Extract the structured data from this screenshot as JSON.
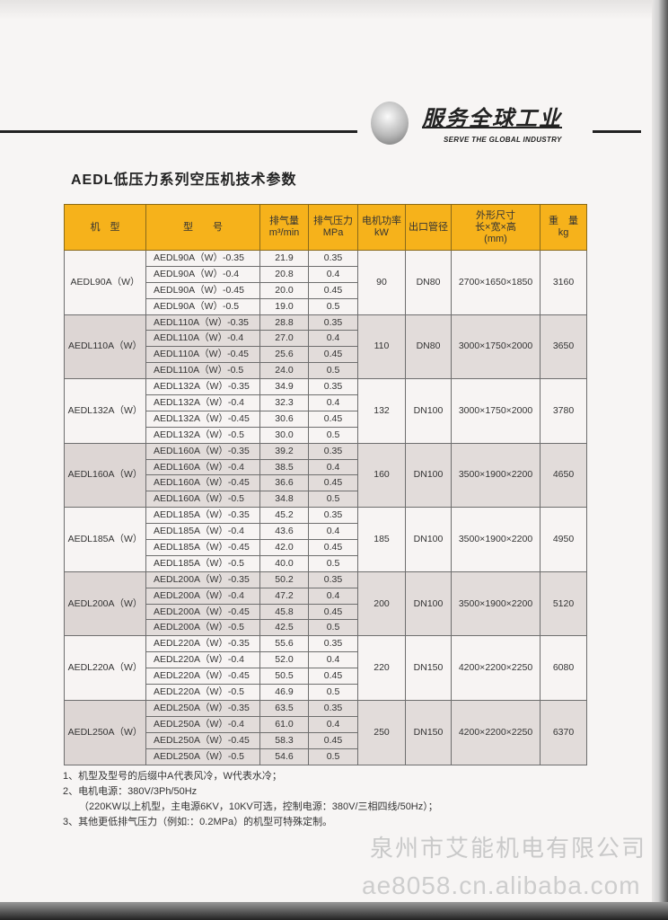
{
  "header": {
    "slogan": "服务全球工业",
    "slogan_en": "SERVE THE GLOBAL INDUSTRY"
  },
  "title": "AEDL低压力系列空压机技术参数",
  "table": {
    "headers": [
      "机　型",
      "型　　号",
      "排气量\nm³/min",
      "排气压力\nMPa",
      "电机功率\nkW",
      "出口管径",
      "外形尺寸\n长×宽×高\n(mm)",
      "重　量\nkg"
    ],
    "groups": [
      {
        "model": "AEDL90A（W）",
        "power": "90",
        "outlet": "DN80",
        "dims": "2700×1650×1850",
        "weight": "3160",
        "rows": [
          [
            "AEDL90A（W）-0.35",
            "21.9",
            "0.35"
          ],
          [
            "AEDL90A（W）-0.4",
            "20.8",
            "0.4"
          ],
          [
            "AEDL90A（W）-0.45",
            "20.0",
            "0.45"
          ],
          [
            "AEDL90A（W）-0.5",
            "19.0",
            "0.5"
          ]
        ]
      },
      {
        "model": "AEDL110A（W）",
        "power": "110",
        "outlet": "DN80",
        "dims": "3000×1750×2000",
        "weight": "3650",
        "rows": [
          [
            "AEDL110A（W）-0.35",
            "28.8",
            "0.35"
          ],
          [
            "AEDL110A（W）-0.4",
            "27.0",
            "0.4"
          ],
          [
            "AEDL110A（W）-0.45",
            "25.6",
            "0.45"
          ],
          [
            "AEDL110A（W）-0.5",
            "24.0",
            "0.5"
          ]
        ]
      },
      {
        "model": "AEDL132A（W）",
        "power": "132",
        "outlet": "DN100",
        "dims": "3000×1750×2000",
        "weight": "3780",
        "rows": [
          [
            "AEDL132A（W）-0.35",
            "34.9",
            "0.35"
          ],
          [
            "AEDL132A（W）-0.4",
            "32.3",
            "0.4"
          ],
          [
            "AEDL132A（W）-0.45",
            "30.6",
            "0.45"
          ],
          [
            "AEDL132A（W）-0.5",
            "30.0",
            "0.5"
          ]
        ]
      },
      {
        "model": "AEDL160A（W）",
        "power": "160",
        "outlet": "DN100",
        "dims": "3500×1900×2200",
        "weight": "4650",
        "rows": [
          [
            "AEDL160A（W）-0.35",
            "39.2",
            "0.35"
          ],
          [
            "AEDL160A（W）-0.4",
            "38.5",
            "0.4"
          ],
          [
            "AEDL160A（W）-0.45",
            "36.6",
            "0.45"
          ],
          [
            "AEDL160A（W）-0.5",
            "34.8",
            "0.5"
          ]
        ]
      },
      {
        "model": "AEDL185A（W）",
        "power": "185",
        "outlet": "DN100",
        "dims": "3500×1900×2200",
        "weight": "4950",
        "rows": [
          [
            "AEDL185A（W）-0.35",
            "45.2",
            "0.35"
          ],
          [
            "AEDL185A（W）-0.4",
            "43.6",
            "0.4"
          ],
          [
            "AEDL185A（W）-0.45",
            "42.0",
            "0.45"
          ],
          [
            "AEDL185A（W）-0.5",
            "40.0",
            "0.5"
          ]
        ]
      },
      {
        "model": "AEDL200A（W）",
        "power": "200",
        "outlet": "DN100",
        "dims": "3500×1900×2200",
        "weight": "5120",
        "rows": [
          [
            "AEDL200A（W）-0.35",
            "50.2",
            "0.35"
          ],
          [
            "AEDL200A（W）-0.4",
            "47.2",
            "0.4"
          ],
          [
            "AEDL200A（W）-0.45",
            "45.8",
            "0.45"
          ],
          [
            "AEDL200A（W）-0.5",
            "42.5",
            "0.5"
          ]
        ]
      },
      {
        "model": "AEDL220A（W）",
        "power": "220",
        "outlet": "DN150",
        "dims": "4200×2200×2250",
        "weight": "6080",
        "rows": [
          [
            "AEDL220A（W）-0.35",
            "55.6",
            "0.35"
          ],
          [
            "AEDL220A（W）-0.4",
            "52.0",
            "0.4"
          ],
          [
            "AEDL220A（W）-0.45",
            "50.5",
            "0.45"
          ],
          [
            "AEDL220A（W）-0.5",
            "46.9",
            "0.5"
          ]
        ]
      },
      {
        "model": "AEDL250A（W）",
        "power": "250",
        "outlet": "DN150",
        "dims": "4200×2200×2250",
        "weight": "6370",
        "rows": [
          [
            "AEDL250A（W）-0.35",
            "63.5",
            "0.35"
          ],
          [
            "AEDL250A（W）-0.4",
            "61.0",
            "0.4"
          ],
          [
            "AEDL250A（W）-0.45",
            "58.3",
            "0.45"
          ],
          [
            "AEDL250A（W）-0.5",
            "54.6",
            "0.5"
          ]
        ]
      }
    ]
  },
  "notes": [
    "1、机型及型号的后缀中A代表风冷，W代表水冷；",
    "2、电机电源：380V/3Ph/50Hz",
    "（220KW以上机型，主电源6KV，10KV可选，控制电源：380V/三相四线/50Hz）；",
    "3、其他更低排气压力（例如:：0.2MPa）的机型可特殊定制。"
  ],
  "watermark": {
    "company": "泉州市艾能机电有限公司",
    "url": "ae8058.cn.alibaba.com"
  },
  "colors": {
    "header_bg": "#f6b21b",
    "shaded_group": "#e2dcda"
  }
}
